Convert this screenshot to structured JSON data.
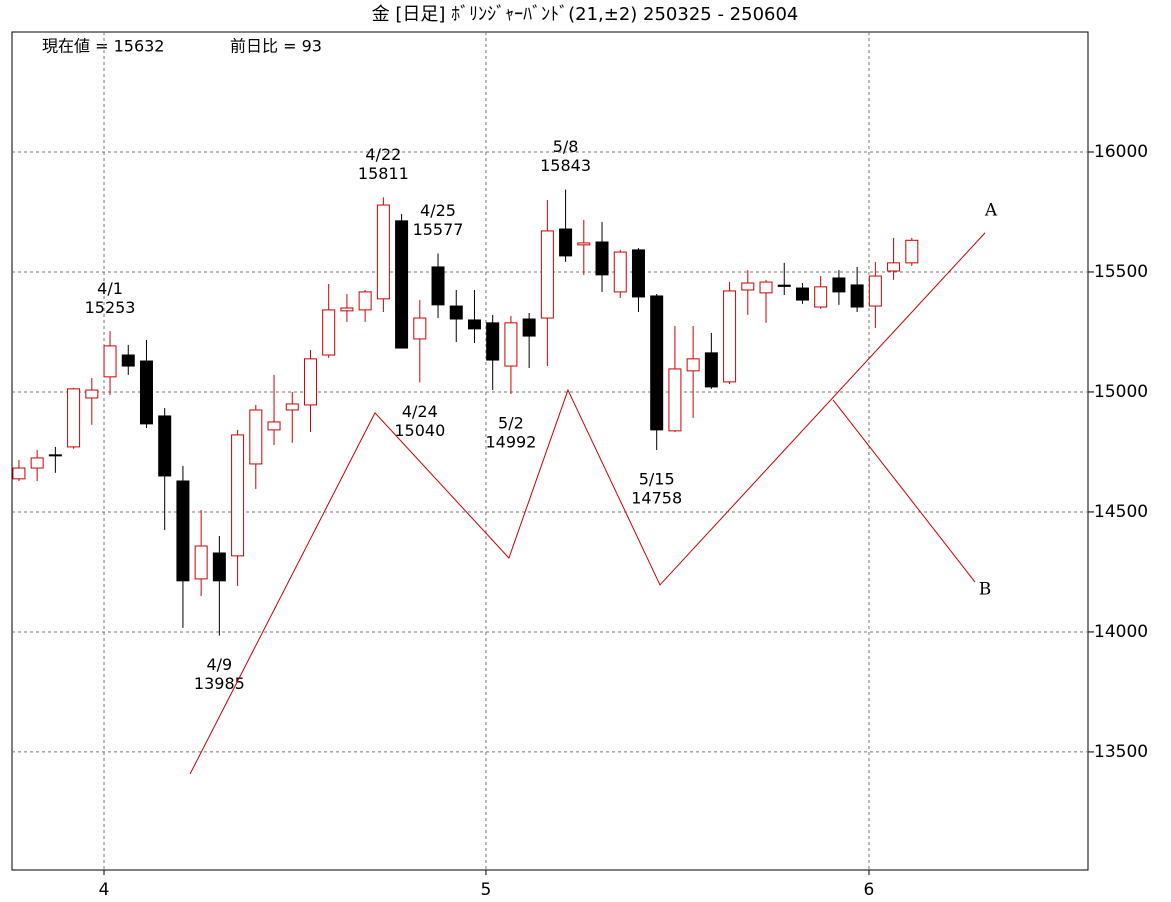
{
  "chart_data": {
    "type": "candlestick",
    "title": "金 [日足] ﾎﾞﾘﾝｼﾞｬｰﾊﾞﾝﾄﾞ(21,±2)  250325 - 250604",
    "info": [
      "現在値 = 15632",
      "前日比 = 93"
    ],
    "up_color": "#cc0000",
    "down_color": "#000000",
    "line_color": "#cc0000",
    "xlim": [
      -0.38,
      58.67
    ],
    "xticks": [
      {
        "value": 4.67,
        "label": "4"
      },
      {
        "value": 25.63,
        "label": "5"
      },
      {
        "value": 46.65,
        "label": "6"
      }
    ],
    "ylim": [
      13008,
      16500
    ],
    "yticks": [
      13500,
      14000,
      14500,
      15000,
      15500,
      16000
    ],
    "grid": true,
    "open": [
      14638,
      14683,
      14738,
      14771,
      14975,
      15063,
      15154,
      15129,
      14900,
      14629,
      14221,
      14329,
      14317,
      14700,
      14842,
      14925,
      14946,
      15154,
      15338,
      15342,
      15388,
      15713,
      15221,
      15521,
      15358,
      15300,
      15288,
      15108,
      15304,
      15308,
      15679,
      15613,
      15625,
      15417,
      15592,
      15400,
      14838,
      15088,
      15163,
      15042,
      15425,
      15413,
      15445,
      15433,
      15354,
      15475,
      15446,
      15358,
      15504,
      15538
    ],
    "high": [
      14717,
      14758,
      14771,
      15017,
      15058,
      15253,
      15196,
      15217,
      14933,
      14692,
      14508,
      14400,
      14842,
      14946,
      15071,
      15000,
      15175,
      15450,
      15408,
      15425,
      15811,
      15742,
      15383,
      15577,
      15425,
      15425,
      15321,
      15317,
      15329,
      15800,
      15843,
      15717,
      15708,
      15592,
      15600,
      15408,
      15275,
      15275,
      15246,
      15458,
      15508,
      15467,
      15538,
      15454,
      15483,
      15508,
      15521,
      15542,
      15642,
      15642
    ],
    "low": [
      14629,
      14629,
      14663,
      14763,
      14863,
      14988,
      15071,
      14850,
      14425,
      14017,
      14150,
      13985,
      14192,
      14596,
      14779,
      14788,
      14833,
      15142,
      15292,
      15292,
      15333,
      15183,
      15040,
      15308,
      15208,
      15204,
      15008,
      14992,
      15100,
      15108,
      15542,
      15488,
      15417,
      15392,
      15333,
      14758,
      14833,
      14892,
      15013,
      15033,
      15321,
      15288,
      15404,
      15367,
      15346,
      15363,
      15333,
      15267,
      15467,
      15525
    ],
    "close": [
      14683,
      14725,
      14738,
      15013,
      15008,
      15192,
      15108,
      14867,
      14650,
      14213,
      14358,
      14213,
      14821,
      14925,
      14875,
      14950,
      15138,
      15342,
      15350,
      15417,
      15779,
      15183,
      15308,
      15363,
      15304,
      15263,
      15133,
      15288,
      15233,
      15671,
      15567,
      15621,
      15488,
      15583,
      15396,
      14842,
      15096,
      15138,
      15021,
      15421,
      15454,
      15458,
      15440,
      15383,
      15438,
      15417,
      15354,
      15483,
      15538,
      15632
    ],
    "annotations": [
      {
        "date": "4/1",
        "value": 15253
      },
      {
        "date": "4/9",
        "value": 13985
      },
      {
        "date": "4/22",
        "value": 15811
      },
      {
        "date": "4/24",
        "value": 15040
      },
      {
        "date": "4/25",
        "value": 15577
      },
      {
        "date": "5/2",
        "value": 14992
      },
      {
        "date": "5/8",
        "value": 15843
      },
      {
        "date": "5/15",
        "value": 14758
      }
    ],
    "lines": [
      {
        "label": "A",
        "x": [
          9.39,
          19.54,
          26.89,
          30.13,
          35.18,
          53.02
        ],
        "values": [
          13408,
          14913,
          14308,
          15008,
          14196,
          15663
        ]
      },
      {
        "label": "B",
        "x": [
          44.68,
          52.47
        ],
        "values": [
          14967,
          14208
        ]
      }
    ]
  }
}
